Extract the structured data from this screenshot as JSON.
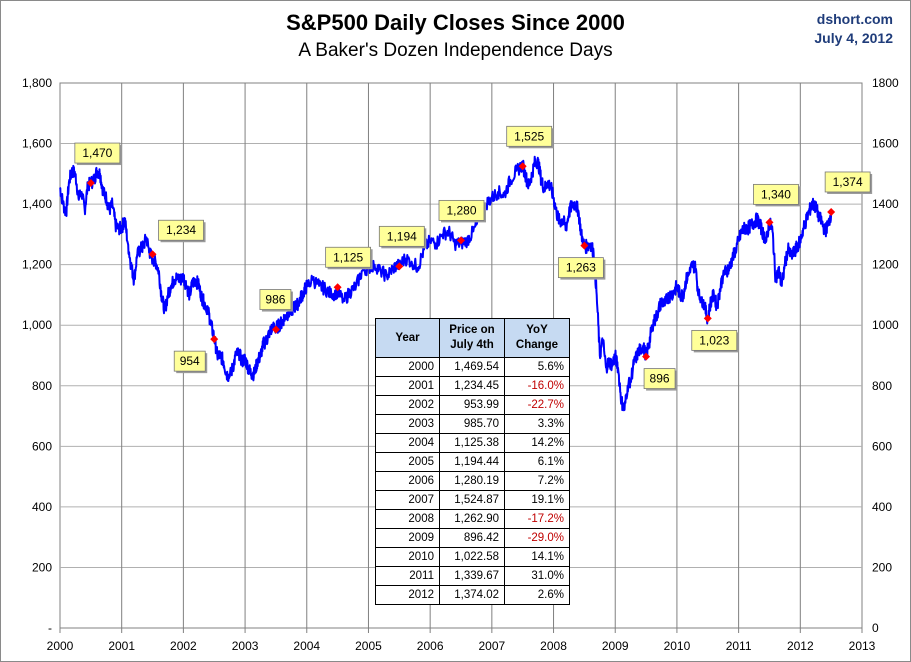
{
  "chart_data": {
    "type": "line",
    "title": "S&P500 Daily Closes Since 2000",
    "subtitle": "A Baker's Dozen Independence  Days",
    "source": "dshort.com",
    "date": "July 4, 2012",
    "x_ticks": [
      "2000",
      "2001",
      "2002",
      "2003",
      "2004",
      "2005",
      "2006",
      "2007",
      "2008",
      "2009",
      "2010",
      "2011",
      "2012",
      "2013"
    ],
    "y_ticks_left": [
      "-",
      "200",
      "400",
      "600",
      "800",
      "1,000",
      "1,200",
      "1,400",
      "1,600",
      "1,800"
    ],
    "y_ticks_right": [
      "0",
      "200",
      "400",
      "600",
      "800",
      "1000",
      "1200",
      "1400",
      "1600",
      "1800"
    ],
    "xlim": [
      2000,
      2013
    ],
    "ylim": [
      0,
      1800
    ],
    "grid": true,
    "line_color": "#0000ff",
    "marker_color": "#ff0000",
    "series": [
      {
        "x": [
          2000.0,
          2000.05,
          2000.1,
          2000.15,
          2000.2,
          2000.25,
          2000.3,
          2000.35,
          2000.4,
          2000.45,
          2000.5,
          2000.55,
          2000.6,
          2000.65,
          2000.7,
          2000.75,
          2000.8,
          2000.85,
          2000.9,
          2000.95,
          2001.0,
          2001.05,
          2001.1,
          2001.15,
          2001.2,
          2001.25,
          2001.3,
          2001.35,
          2001.4,
          2001.45,
          2001.5,
          2001.55,
          2001.6,
          2001.65,
          2001.7,
          2001.75,
          2001.8,
          2001.85,
          2001.9,
          2001.95,
          2002.0,
          2002.05,
          2002.1,
          2002.15,
          2002.2,
          2002.25,
          2002.3,
          2002.35,
          2002.4,
          2002.45,
          2002.5,
          2002.55,
          2002.6,
          2002.65,
          2002.7,
          2002.75,
          2002.8,
          2002.85,
          2002.9,
          2002.95,
          2003.0,
          2003.05,
          2003.1,
          2003.15,
          2003.2,
          2003.25,
          2003.3,
          2003.35,
          2003.4,
          2003.45,
          2003.5,
          2003.55,
          2003.6,
          2003.65,
          2003.7,
          2003.75,
          2003.8,
          2003.85,
          2003.9,
          2003.95,
          2004.0,
          2004.1,
          2004.2,
          2004.3,
          2004.4,
          2004.5,
          2004.6,
          2004.7,
          2004.8,
          2004.9,
          2005.0,
          2005.1,
          2005.2,
          2005.3,
          2005.4,
          2005.5,
          2005.6,
          2005.7,
          2005.8,
          2005.9,
          2006.0,
          2006.1,
          2006.2,
          2006.3,
          2006.4,
          2006.5,
          2006.6,
          2006.7,
          2006.8,
          2006.9,
          2007.0,
          2007.1,
          2007.2,
          2007.3,
          2007.4,
          2007.5,
          2007.55,
          2007.6,
          2007.65,
          2007.7,
          2007.75,
          2007.8,
          2007.85,
          2007.9,
          2007.95,
          2008.0,
          2008.05,
          2008.1,
          2008.15,
          2008.2,
          2008.25,
          2008.3,
          2008.35,
          2008.4,
          2008.45,
          2008.5,
          2008.55,
          2008.6,
          2008.65,
          2008.7,
          2008.75,
          2008.8,
          2008.85,
          2008.9,
          2008.95,
          2009.0,
          2009.05,
          2009.1,
          2009.15,
          2009.2,
          2009.25,
          2009.3,
          2009.35,
          2009.4,
          2009.45,
          2009.5,
          2009.55,
          2009.6,
          2009.65,
          2009.7,
          2009.75,
          2009.8,
          2009.85,
          2009.9,
          2009.95,
          2010.0,
          2010.05,
          2010.1,
          2010.15,
          2010.2,
          2010.25,
          2010.3,
          2010.35,
          2010.4,
          2010.45,
          2010.5,
          2010.55,
          2010.6,
          2010.65,
          2010.7,
          2010.75,
          2010.8,
          2010.85,
          2010.9,
          2010.95,
          2011.0,
          2011.05,
          2011.1,
          2011.15,
          2011.2,
          2011.25,
          2011.3,
          2011.35,
          2011.4,
          2011.45,
          2011.5,
          2011.55,
          2011.6,
          2011.65,
          2011.7,
          2011.75,
          2011.8,
          2011.85,
          2011.9,
          2011.95,
          2012.0,
          2012.05,
          2012.1,
          2012.15,
          2012.2,
          2012.25,
          2012.3,
          2012.35,
          2012.4,
          2012.45,
          2012.5
        ],
        "values": [
          1455,
          1400,
          1370,
          1480,
          1510,
          1500,
          1420,
          1440,
          1380,
          1460,
          1470,
          1480,
          1510,
          1500,
          1440,
          1420,
          1380,
          1400,
          1330,
          1320,
          1320,
          1350,
          1270,
          1200,
          1150,
          1230,
          1250,
          1260,
          1290,
          1240,
          1220,
          1210,
          1180,
          1090,
          1050,
          1100,
          1130,
          1150,
          1160,
          1150,
          1160,
          1130,
          1100,
          1140,
          1150,
          1130,
          1090,
          1070,
          1050,
          1000,
          960,
          900,
          900,
          880,
          840,
          830,
          860,
          900,
          910,
          880,
          890,
          860,
          840,
          840,
          880,
          900,
          940,
          950,
          980,
          990,
          990,
          1000,
          1010,
          1030,
          1040,
          1050,
          1060,
          1070,
          1090,
          1110,
          1130,
          1150,
          1130,
          1120,
          1100,
          1110,
          1080,
          1110,
          1130,
          1180,
          1190,
          1200,
          1180,
          1160,
          1190,
          1200,
          1220,
          1210,
          1190,
          1250,
          1280,
          1270,
          1300,
          1310,
          1270,
          1270,
          1280,
          1310,
          1350,
          1400,
          1420,
          1440,
          1430,
          1480,
          1510,
          1530,
          1490,
          1460,
          1500,
          1540,
          1540,
          1480,
          1450,
          1470,
          1460,
          1420,
          1370,
          1340,
          1350,
          1320,
          1370,
          1400,
          1400,
          1380,
          1300,
          1260,
          1260,
          1270,
          1240,
          1100,
          900,
          950,
          860,
          880,
          870,
          900,
          850,
          750,
          720,
          800,
          820,
          870,
          900,
          920,
          930,
          900,
          940,
          1000,
          1020,
          1050,
          1080,
          1070,
          1090,
          1100,
          1110,
          1130,
          1100,
          1100,
          1150,
          1170,
          1200,
          1190,
          1100,
          1090,
          1060,
          1020,
          1080,
          1100,
          1060,
          1120,
          1170,
          1180,
          1190,
          1220,
          1250,
          1280,
          1310,
          1320,
          1320,
          1330,
          1340,
          1350,
          1330,
          1300,
          1280,
          1340,
          1310,
          1150,
          1180,
          1130,
          1200,
          1250,
          1230,
          1240,
          1260,
          1280,
          1320,
          1350,
          1380,
          1400,
          1390,
          1360,
          1340,
          1310,
          1330,
          1370
        ]
      }
    ],
    "july4_points": [
      {
        "year": 2000,
        "value": 1469.54,
        "label": "1,470"
      },
      {
        "year": 2001,
        "value": 1234.45,
        "label": "1,234"
      },
      {
        "year": 2002,
        "value": 953.99,
        "label": "954"
      },
      {
        "year": 2003,
        "value": 985.7,
        "label": "986"
      },
      {
        "year": 2004,
        "value": 1125.38,
        "label": "1,125"
      },
      {
        "year": 2005,
        "value": 1194.44,
        "label": "1,194"
      },
      {
        "year": 2006,
        "value": 1280.19,
        "label": "1,280"
      },
      {
        "year": 2007,
        "value": 1524.87,
        "label": "1,525"
      },
      {
        "year": 2008,
        "value": 1262.9,
        "label": "1,263"
      },
      {
        "year": 2009,
        "value": 896.42,
        "label": "896"
      },
      {
        "year": 2010,
        "value": 1022.58,
        "label": "1,023"
      },
      {
        "year": 2011,
        "value": 1339.67,
        "label": "1,340"
      },
      {
        "year": 2012,
        "value": 1374.02,
        "label": "1,374"
      }
    ],
    "table": {
      "headers": [
        "Year",
        "Price on July 4th",
        "YoY Change"
      ],
      "rows": [
        [
          "2000",
          "1,469.54",
          "5.6%"
        ],
        [
          "2001",
          "1,234.45",
          "-16.0%"
        ],
        [
          "2002",
          "953.99",
          "-22.7%"
        ],
        [
          "2003",
          "985.70",
          "3.3%"
        ],
        [
          "2004",
          "1,125.38",
          "14.2%"
        ],
        [
          "2005",
          "1,194.44",
          "6.1%"
        ],
        [
          "2006",
          "1,280.19",
          "7.2%"
        ],
        [
          "2007",
          "1,524.87",
          "19.1%"
        ],
        [
          "2008",
          "1,262.90",
          "-17.2%"
        ],
        [
          "2009",
          "896.42",
          "-29.0%"
        ],
        [
          "2010",
          "1,022.58",
          "14.1%"
        ],
        [
          "2011",
          "1,339.67",
          "31.0%"
        ],
        [
          "2012",
          "1,374.02",
          "2.6%"
        ]
      ]
    }
  }
}
